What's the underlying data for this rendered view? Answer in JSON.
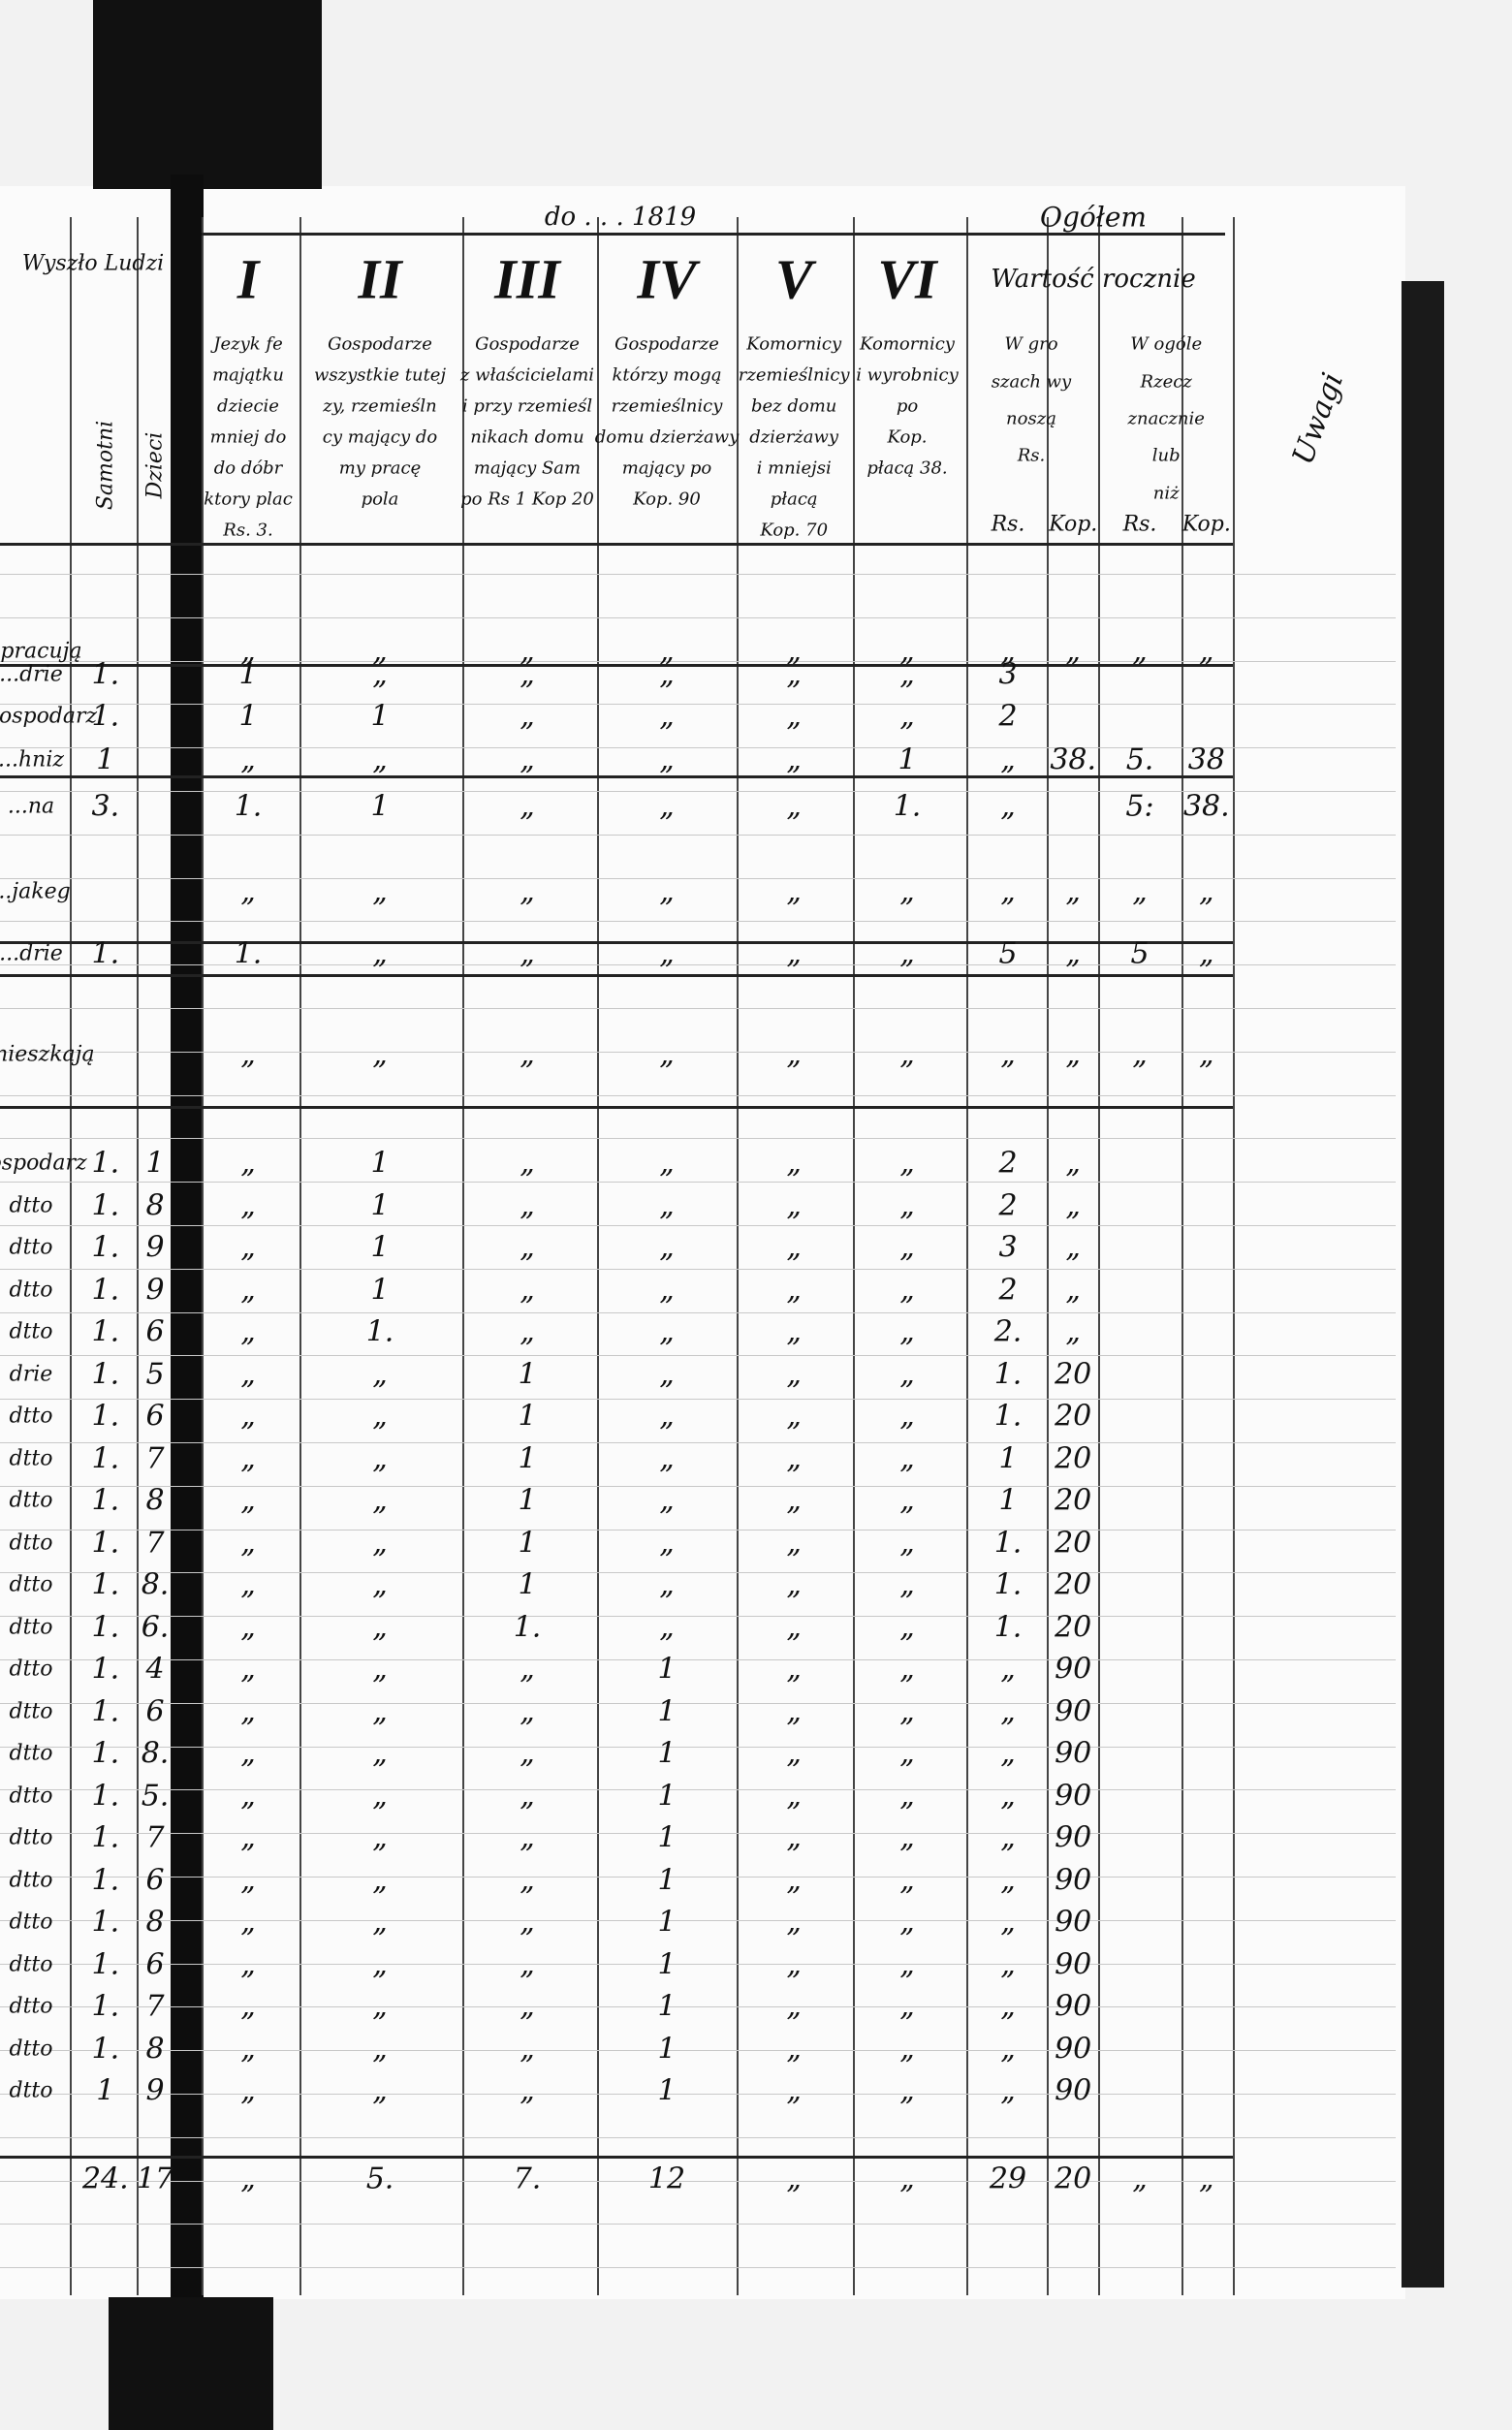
{
  "header": {
    "top_line": "do . . . 1819",
    "left_columns": [
      {
        "title": "Wyszło Ludzi"
      },
      {
        "title": "Samotni"
      },
      {
        "title": "Dzieci"
      }
    ],
    "columns": [
      {
        "numeral": "I",
        "lines": [
          "Jezyk fe",
          "majątku",
          "dziecie",
          "mniej do",
          "do dóbr",
          "ktory plac",
          "Rs. 3."
        ]
      },
      {
        "numeral": "II",
        "lines": [
          "Gospodarze",
          "wszystkie tutej",
          "zy, rzemieśln",
          "cy mający do",
          "my pracę",
          "pola"
        ]
      },
      {
        "numeral": "III",
        "lines": [
          "Gospodarze",
          "z właścicielami",
          "i przy rzemieśl",
          "nikach domu",
          "mający Sam",
          "po Rs 1 Kop 20"
        ]
      },
      {
        "numeral": "IV",
        "lines": [
          "Gospodarze",
          "którzy mogą",
          "rzemieślnicy",
          "domu dzierżawy",
          "mający po",
          "Kop. 90"
        ]
      },
      {
        "numeral": "V",
        "lines": [
          "Komornicy",
          "rzemieślnicy",
          "bez domu",
          "dzierżawy",
          "i mniejsi",
          "płacą",
          "Kop. 70"
        ]
      },
      {
        "numeral": "VI",
        "lines": [
          "Komornicy",
          "i wyrobnicy",
          "po",
          "Kop.",
          "płacą 38."
        ]
      }
    ],
    "total": {
      "title": "Ogółem",
      "subtitle": "Wartość rocznie",
      "cash_lines": [
        "W gro",
        "szach wy",
        "noszą",
        "Rs."
      ],
      "kind_lines": [
        "W ogóle",
        "Rzecz",
        "znacznie",
        "lub",
        "niż"
      ],
      "units": [
        "Rs.",
        "Kop.",
        "Rs.",
        "Kop."
      ]
    },
    "remarks": "Uwagi"
  },
  "rows": [
    {
      "cells": [
        "...pracują",
        null,
        null,
        "„",
        "„",
        "„",
        "„",
        "„",
        "„",
        "„",
        "„",
        "„",
        "„"
      ]
    },
    {
      "cells": [
        "...drie",
        "1.",
        null,
        "1",
        "„",
        "„",
        "„",
        "„",
        "„",
        "3",
        null,
        null,
        null
      ]
    },
    {
      "cells": [
        "...gospodarz",
        "1.",
        null,
        "1",
        "1",
        "„",
        "„",
        "„",
        "„",
        "2",
        null,
        null,
        null
      ]
    },
    {
      "cells": [
        "...hniz",
        "1",
        null,
        "„",
        "„",
        "„",
        "„",
        "„",
        "1",
        "„",
        "38.",
        "5.",
        "38"
      ]
    },
    {
      "cells": [
        "...na",
        "3.",
        null,
        "1.",
        "1",
        "„",
        "„",
        "„",
        "1.",
        "„",
        null,
        "5:",
        "38."
      ]
    },
    {
      "cells": [
        "...jakeg",
        null,
        null,
        "„",
        "„",
        "„",
        "„",
        "„",
        "„",
        "„",
        "„",
        "„",
        "„"
      ]
    },
    {
      "cells": [
        "...drie",
        "1.",
        null,
        "1.",
        "„",
        "„",
        "„",
        "„",
        "„",
        "5",
        "„",
        "5",
        "„"
      ]
    },
    {
      "cells": [
        "...mieszkają",
        null,
        null,
        "„",
        "„",
        "„",
        "„",
        "„",
        "„",
        "„",
        "„",
        "„",
        "„"
      ]
    },
    {
      "cells": [
        "gospodarz",
        "1.",
        "1",
        "„",
        "1",
        "„",
        "„",
        "„",
        "„",
        "2",
        "„",
        null,
        null
      ]
    },
    {
      "cells": [
        "dtto",
        "1.",
        "8",
        "„",
        "1",
        "„",
        "„",
        "„",
        "„",
        "2",
        "„",
        null,
        null
      ]
    },
    {
      "cells": [
        "dtto",
        "1.",
        "9",
        "„",
        "1",
        "„",
        "„",
        "„",
        "„",
        "3",
        "„",
        null,
        null
      ]
    },
    {
      "cells": [
        "dtto",
        "1.",
        "9",
        "„",
        "1",
        "„",
        "„",
        "„",
        "„",
        "2",
        "„",
        null,
        null
      ]
    },
    {
      "cells": [
        "dtto",
        "1.",
        "6",
        "„",
        "1.",
        "„",
        "„",
        "„",
        "„",
        "2.",
        "„",
        null,
        null
      ]
    },
    {
      "cells": [
        "drie",
        "1.",
        "5",
        "„",
        "„",
        "1",
        "„",
        "„",
        "„",
        "1.",
        "20",
        null,
        null
      ]
    },
    {
      "cells": [
        "dtto",
        "1.",
        "6",
        "„",
        "„",
        "1",
        "„",
        "„",
        "„",
        "1.",
        "20",
        null,
        null
      ]
    },
    {
      "cells": [
        "dtto",
        "1.",
        "7",
        "„",
        "„",
        "1",
        "„",
        "„",
        "„",
        "1",
        "20",
        null,
        null
      ]
    },
    {
      "cells": [
        "dtto",
        "1.",
        "8",
        "„",
        "„",
        "1",
        "„",
        "„",
        "„",
        "1",
        "20",
        null,
        null
      ]
    },
    {
      "cells": [
        "dtto",
        "1.",
        "7",
        "„",
        "„",
        "1",
        "„",
        "„",
        "„",
        "1.",
        "20",
        null,
        null
      ]
    },
    {
      "cells": [
        "dtto",
        "1.",
        "8.",
        "„",
        "„",
        "1",
        "„",
        "„",
        "„",
        "1.",
        "20",
        null,
        null
      ]
    },
    {
      "cells": [
        "dtto",
        "1.",
        "6.",
        "„",
        "„",
        "1.",
        "„",
        "„",
        "„",
        "1.",
        "20",
        null,
        null
      ]
    },
    {
      "cells": [
        "dtto",
        "1.",
        "4",
        "„",
        "„",
        "„",
        "1",
        "„",
        "„",
        "„",
        "90",
        null,
        null
      ]
    },
    {
      "cells": [
        "dtto",
        "1.",
        "6",
        "„",
        "„",
        "„",
        "1",
        "„",
        "„",
        "„",
        "90",
        null,
        null
      ]
    },
    {
      "cells": [
        "dtto",
        "1.",
        "8.",
        "„",
        "„",
        "„",
        "1",
        "„",
        "„",
        "„",
        "90",
        null,
        null
      ]
    },
    {
      "cells": [
        "dtto",
        "1.",
        "5.",
        "„",
        "„",
        "„",
        "1",
        "„",
        "„",
        "„",
        "90",
        null,
        null
      ]
    },
    {
      "cells": [
        "dtto",
        "1.",
        "7",
        "„",
        "„",
        "„",
        "1",
        "„",
        "„",
        "„",
        "90",
        null,
        null
      ]
    },
    {
      "cells": [
        "dtto",
        "1.",
        "6",
        "„",
        "„",
        "„",
        "1",
        "„",
        "„",
        "„",
        "90",
        null,
        null
      ]
    },
    {
      "cells": [
        "dtto",
        "1.",
        "8",
        "„",
        "„",
        "„",
        "1",
        "„",
        "„",
        "„",
        "90",
        null,
        null
      ]
    },
    {
      "cells": [
        "dtto",
        "1.",
        "6",
        "„",
        "„",
        "„",
        "1",
        "„",
        "„",
        "„",
        "90",
        null,
        null
      ]
    },
    {
      "cells": [
        "dtto",
        "1.",
        "7",
        "„",
        "„",
        "„",
        "1",
        "„",
        "„",
        "„",
        "90",
        null,
        null
      ]
    },
    {
      "cells": [
        "dtto",
        "1.",
        "8",
        "„",
        "„",
        "„",
        "1",
        "„",
        "„",
        "„",
        "90",
        null,
        null
      ]
    },
    {
      "cells": [
        "dtto",
        "1",
        "9",
        "„",
        "„",
        "„",
        "1",
        "„",
        "„",
        "„",
        "90",
        null,
        null
      ]
    }
  ],
  "totals": [
    "24.",
    "17",
    "„",
    "5.",
    "7.",
    "12",
    "„",
    "„",
    "29",
    "20",
    "„",
    "„"
  ]
}
